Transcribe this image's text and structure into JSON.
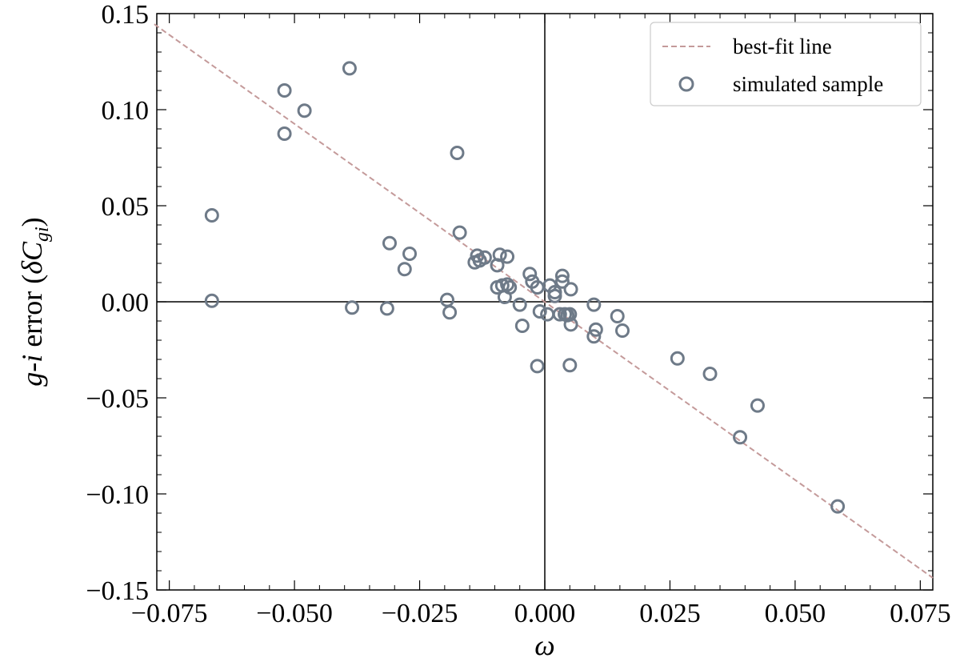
{
  "chart_data": {
    "type": "scatter",
    "xlabel": "ω",
    "ylabel": {
      "prefix_italic": "g",
      "prefix_dash": "-",
      "prefix_italic2": "i",
      "word": " error (",
      "symbol": "δC",
      "subscript": "gi",
      "suffix": ")"
    },
    "xlim": [
      -0.0775,
      0.0775
    ],
    "ylim": [
      -0.15,
      0.15
    ],
    "x_ticks": [
      -0.075,
      -0.05,
      -0.025,
      0.0,
      0.025,
      0.05,
      0.075
    ],
    "x_tick_labels": [
      "−0.075",
      "−0.050",
      "−0.025",
      "0.000",
      "0.025",
      "0.050",
      "0.075"
    ],
    "y_ticks": [
      -0.15,
      -0.1,
      -0.05,
      0.0,
      0.05,
      0.1,
      0.15
    ],
    "y_tick_labels": [
      "−0.15",
      "−0.10",
      "−0.05",
      "0.00",
      "0.05",
      "0.10",
      "0.15"
    ],
    "grid": false,
    "reference_lines": {
      "x": 0,
      "y": 0
    },
    "legend": {
      "position": "top-right",
      "entries": [
        {
          "label": "best-fit line",
          "marker": "dashed-line"
        },
        {
          "label": "simulated sample",
          "marker": "open-circle"
        }
      ]
    },
    "colors": {
      "fit_line": "#c49a9a",
      "points": "#6e7a88",
      "axes": "#000000"
    },
    "series": [
      {
        "name": "best-fit line",
        "kind": "line",
        "x": [
          -0.078,
          0.0775
        ],
        "y": [
          0.1445,
          -0.1437
        ]
      },
      {
        "name": "simulated sample",
        "kind": "scatter",
        "points": [
          [
            -0.0665,
            0.045
          ],
          [
            -0.0665,
            0.0005
          ],
          [
            -0.052,
            0.11
          ],
          [
            -0.052,
            0.0875
          ],
          [
            -0.048,
            0.0995
          ],
          [
            -0.039,
            0.1215
          ],
          [
            -0.0385,
            -0.003
          ],
          [
            -0.0315,
            -0.0035
          ],
          [
            -0.031,
            0.0305
          ],
          [
            -0.028,
            0.017
          ],
          [
            -0.027,
            0.025
          ],
          [
            -0.0195,
            0.001
          ],
          [
            -0.019,
            -0.0055
          ],
          [
            -0.0175,
            0.0775
          ],
          [
            -0.017,
            0.036
          ],
          [
            -0.014,
            0.0205
          ],
          [
            -0.0135,
            0.024
          ],
          [
            -0.013,
            0.0215
          ],
          [
            -0.012,
            0.023
          ],
          [
            -0.009,
            0.0245
          ],
          [
            -0.0095,
            0.019
          ],
          [
            -0.0095,
            0.0075
          ],
          [
            -0.0085,
            0.0085
          ],
          [
            -0.008,
            0.0025
          ],
          [
            -0.0075,
            0.0235
          ],
          [
            -0.0075,
            0.009
          ],
          [
            -0.007,
            0.0075
          ],
          [
            -0.005,
            -0.0015
          ],
          [
            -0.0045,
            -0.0125
          ],
          [
            -0.003,
            0.0145
          ],
          [
            -0.0025,
            0.0105
          ],
          [
            -0.0015,
            0.0075
          ],
          [
            -0.0015,
            -0.0335
          ],
          [
            -0.001,
            -0.005
          ],
          [
            0.0005,
            -0.0065
          ],
          [
            0.001,
            0.0085
          ],
          [
            0.002,
            0.005
          ],
          [
            0.002,
            0.003
          ],
          [
            0.003,
            -0.0065
          ],
          [
            0.0035,
            0.0105
          ],
          [
            0.0035,
            0.0135
          ],
          [
            0.004,
            -0.0065
          ],
          [
            0.0045,
            -0.007
          ],
          [
            0.005,
            -0.0065
          ],
          [
            0.0052,
            -0.0118
          ],
          [
            0.005,
            -0.033
          ],
          [
            0.0052,
            0.0065
          ],
          [
            0.0098,
            -0.0015
          ],
          [
            0.0098,
            -0.018
          ],
          [
            0.0102,
            -0.0145
          ],
          [
            0.0145,
            -0.0075
          ],
          [
            0.0155,
            -0.015
          ],
          [
            0.0265,
            -0.0295
          ],
          [
            0.033,
            -0.0375
          ],
          [
            0.039,
            -0.0705
          ],
          [
            0.0425,
            -0.054
          ],
          [
            0.0585,
            -0.1065
          ]
        ]
      }
    ]
  }
}
